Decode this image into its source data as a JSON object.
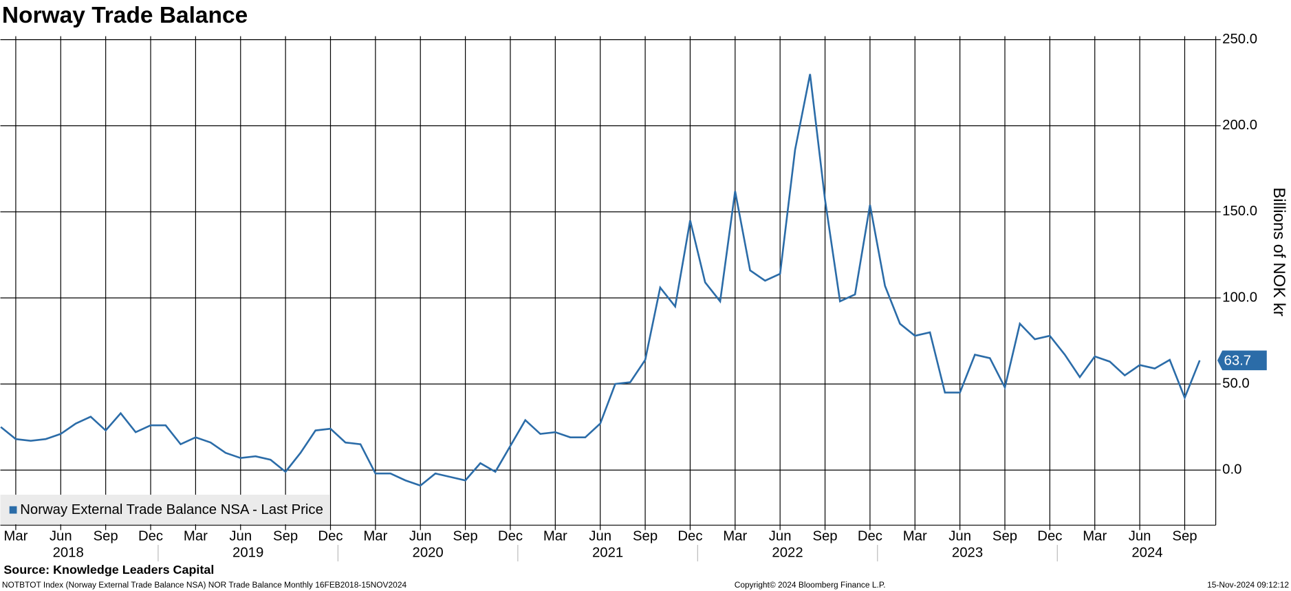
{
  "chart_data": {
    "type": "line",
    "title": "Norway Trade Balance",
    "x": [
      "2018-02",
      "2018-03",
      "2018-04",
      "2018-05",
      "2018-06",
      "2018-07",
      "2018-08",
      "2018-09",
      "2018-10",
      "2018-11",
      "2018-12",
      "2019-01",
      "2019-02",
      "2019-03",
      "2019-04",
      "2019-05",
      "2019-06",
      "2019-07",
      "2019-08",
      "2019-09",
      "2019-10",
      "2019-11",
      "2019-12",
      "2020-01",
      "2020-02",
      "2020-03",
      "2020-04",
      "2020-05",
      "2020-06",
      "2020-07",
      "2020-08",
      "2020-09",
      "2020-10",
      "2020-11",
      "2020-12",
      "2021-01",
      "2021-02",
      "2021-03",
      "2021-04",
      "2021-05",
      "2021-06",
      "2021-07",
      "2021-08",
      "2021-09",
      "2021-10",
      "2021-11",
      "2021-12",
      "2022-01",
      "2022-02",
      "2022-03",
      "2022-04",
      "2022-05",
      "2022-06",
      "2022-07",
      "2022-08",
      "2022-09",
      "2022-10",
      "2022-11",
      "2022-12",
      "2023-01",
      "2023-02",
      "2023-03",
      "2023-04",
      "2023-05",
      "2023-06",
      "2023-07",
      "2023-08",
      "2023-09",
      "2023-10",
      "2023-11",
      "2023-12",
      "2024-01",
      "2024-02",
      "2024-03",
      "2024-04",
      "2024-05",
      "2024-06",
      "2024-07",
      "2024-08",
      "2024-09",
      "2024-10"
    ],
    "series": [
      {
        "name": "Norway External Trade Balance NSA - Last Price",
        "color": "#2b6ca8",
        "values": [
          25,
          18,
          17,
          18,
          21,
          27,
          31,
          23,
          33,
          22,
          26,
          26,
          15,
          19,
          16,
          10,
          7,
          8,
          6,
          -1,
          10,
          23,
          24,
          16,
          15,
          -2,
          -2,
          -6,
          -9,
          -2,
          -4,
          -6,
          4,
          -1,
          14,
          29,
          21,
          22,
          19,
          19,
          27,
          50,
          51,
          64,
          106,
          95,
          145,
          109,
          98,
          162,
          116,
          110,
          114,
          186,
          230,
          157,
          98,
          102,
          154,
          107,
          85,
          78,
          80,
          45,
          45,
          67,
          65,
          48,
          85,
          76,
          78,
          67,
          54,
          66,
          63,
          55,
          61,
          59,
          64,
          42,
          63.7
        ],
        "value_labels": [
          null,
          null,
          null,
          null,
          null,
          null,
          null,
          null,
          null,
          null,
          null,
          null,
          null,
          null,
          null,
          null,
          null,
          null,
          null,
          null,
          null,
          null,
          null,
          null,
          null,
          null,
          null,
          null,
          null,
          null,
          null,
          null,
          null,
          null,
          null,
          null,
          null,
          null,
          null,
          null,
          null,
          null,
          null,
          null,
          null,
          null,
          null,
          null,
          null,
          null,
          null,
          null,
          null,
          null,
          null,
          null,
          null,
          null,
          null,
          null,
          null,
          null,
          null,
          null,
          null,
          null,
          null,
          null,
          null,
          null,
          null,
          null,
          null,
          null,
          null,
          null,
          null,
          null,
          null,
          null,
          "63.7"
        ]
      }
    ],
    "ylabel": "Billions of NOK kr",
    "yaxis_side": "right",
    "ylim": [
      -32,
      252
    ],
    "yticks": [
      {
        "value": 0,
        "label": "0.0"
      },
      {
        "value": 50,
        "label": "50.0"
      },
      {
        "value": 100,
        "label": "100.0"
      },
      {
        "value": 150,
        "label": "150.0"
      },
      {
        "value": 200,
        "label": "200.0"
      },
      {
        "value": 250,
        "label": "250.0"
      }
    ],
    "xticks": [
      {
        "value": "2018-03",
        "label": "Mar"
      },
      {
        "value": "2018-06",
        "label": "Jun"
      },
      {
        "value": "2018-09",
        "label": "Sep"
      },
      {
        "value": "2018-12",
        "label": "Dec"
      },
      {
        "value": "2019-03",
        "label": "Mar"
      },
      {
        "value": "2019-06",
        "label": "Jun"
      },
      {
        "value": "2019-09",
        "label": "Sep"
      },
      {
        "value": "2019-12",
        "label": "Dec"
      },
      {
        "value": "2020-03",
        "label": "Mar"
      },
      {
        "value": "2020-06",
        "label": "Jun"
      },
      {
        "value": "2020-09",
        "label": "Sep"
      },
      {
        "value": "2020-12",
        "label": "Dec"
      },
      {
        "value": "2021-03",
        "label": "Mar"
      },
      {
        "value": "2021-06",
        "label": "Jun"
      },
      {
        "value": "2021-09",
        "label": "Sep"
      },
      {
        "value": "2021-12",
        "label": "Dec"
      },
      {
        "value": "2022-03",
        "label": "Mar"
      },
      {
        "value": "2022-06",
        "label": "Jun"
      },
      {
        "value": "2022-09",
        "label": "Sep"
      },
      {
        "value": "2022-12",
        "label": "Dec"
      },
      {
        "value": "2023-03",
        "label": "Mar"
      },
      {
        "value": "2023-06",
        "label": "Jun"
      },
      {
        "value": "2023-09",
        "label": "Sep"
      },
      {
        "value": "2023-12",
        "label": "Dec"
      },
      {
        "value": "2024-03",
        "label": "Mar"
      },
      {
        "value": "2024-06",
        "label": "Jun"
      },
      {
        "value": "2024-09",
        "label": "Sep"
      }
    ],
    "x_year_labels": [
      "2018",
      "2019",
      "2020",
      "2021",
      "2022",
      "2023",
      "2024"
    ],
    "grid": true,
    "legend": "lower left",
    "source": "Source: Knowledge Leaders Capital",
    "footer": {
      "left": "NOTBTOT Index (Norway External Trade Balance NSA) NOR Trade Balance  Monthly 16FEB2018-15NOV2024",
      "center": "Copyright© 2024 Bloomberg Finance L.P.",
      "right": "15-Nov-2024 09:12:12"
    }
  }
}
